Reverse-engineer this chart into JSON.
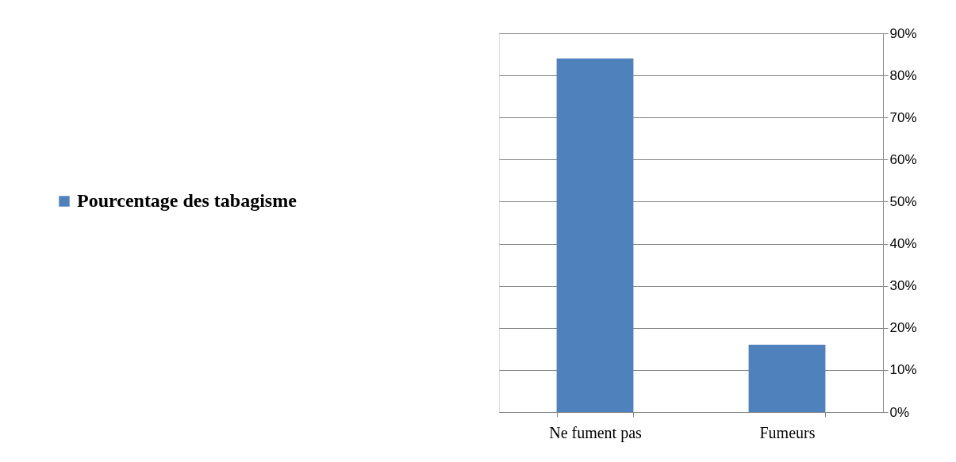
{
  "chart_data": {
    "type": "bar",
    "categories": [
      "Ne fument pas",
      "Fumeurs"
    ],
    "series": [
      {
        "name": "Pourcentage des tabagisme",
        "color": "#4f81bd",
        "values": [
          84,
          16
        ]
      }
    ],
    "ylim": [
      0,
      90
    ],
    "yticks": [
      {
        "value": 0,
        "label": "0%"
      },
      {
        "value": 10,
        "label": "10%"
      },
      {
        "value": 20,
        "label": "20%"
      },
      {
        "value": 30,
        "label": "30%"
      },
      {
        "value": 40,
        "label": "40%"
      },
      {
        "value": 50,
        "label": "50%"
      },
      {
        "value": 60,
        "label": "60%"
      },
      {
        "value": 70,
        "label": "70%"
      },
      {
        "value": 80,
        "label": "80%"
      },
      {
        "value": 90,
        "label": "90%"
      }
    ],
    "grid": "y",
    "legend": "left"
  }
}
